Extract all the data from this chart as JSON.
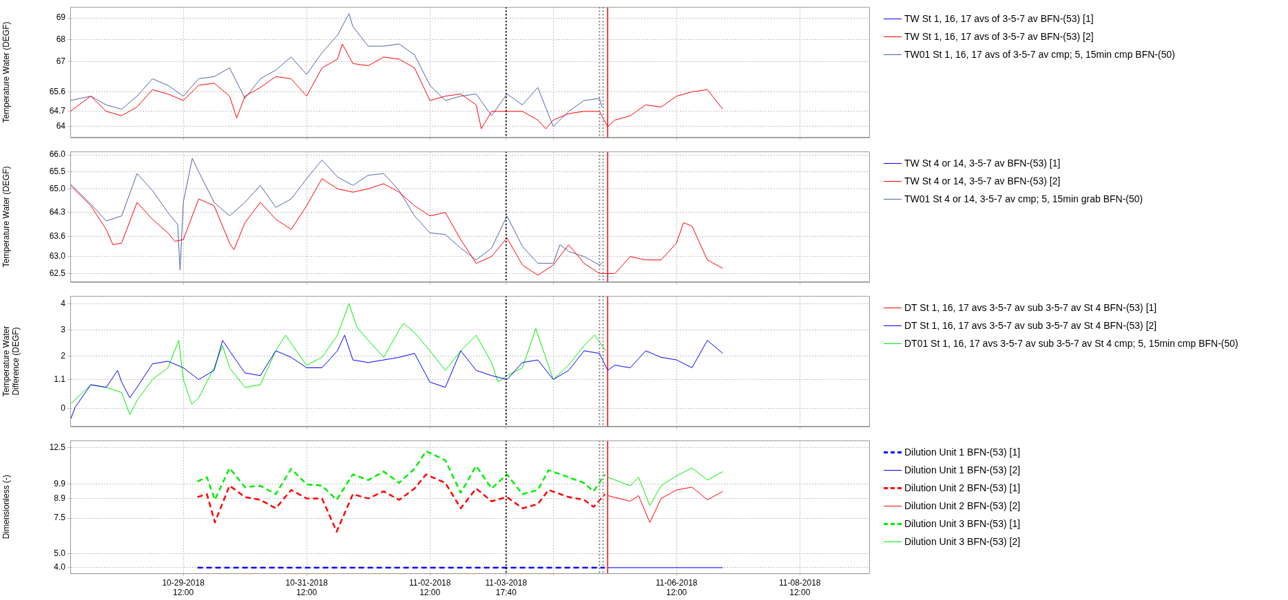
{
  "chart_data": [
    {
      "type": "line",
      "ylabel": "Temperature Water (DEGF)",
      "legend": "right",
      "grid": true,
      "tick_labels": "y",
      "xlim": [
        "2018-10-27T16:00",
        "2018-11-09T15:00"
      ],
      "xticks": [
        {
          "value": "2018-10-29T12:00",
          "label": null
        },
        {
          "value": "2018-10-31T12:00",
          "label": null
        },
        {
          "value": "2018-11-02T12:00",
          "label": null
        },
        {
          "value": "2018-11-03T17:40",
          "label": null
        },
        {
          "value": "2018-11-04T12:00",
          "label": null
        },
        {
          "value": "2018-11-06T12:00",
          "label": null
        },
        {
          "value": "2018-11-08T12:00",
          "label": null
        }
      ],
      "ylim": [
        63.5,
        69.5
      ],
      "yticks": [
        64,
        64.7,
        65.6,
        67,
        68,
        69
      ],
      "ref_lines": [
        {
          "axis": "x",
          "value": "2018-11-03T17:40",
          "color": "#000000",
          "line_style": "dotted"
        },
        {
          "axis": "x",
          "value": "2018-11-05T06:00",
          "color": "#808080",
          "line_style": "dotted"
        },
        {
          "axis": "x",
          "value": "2018-11-05T07:24",
          "color": "#808080",
          "line_style": "dotted"
        },
        {
          "axis": "x",
          "value": "2018-11-05T09:12",
          "color": "#ff0000",
          "line_style": "solid"
        }
      ],
      "series": [
        {
          "name": "TW St 1, 16, 17 avs of 3-5-7 av BFN-(53) [1]",
          "color": "#0000ff"
        },
        {
          "name": "TW St 1, 16, 17 avs of 3-5-7 av BFN-(53) [2]",
          "color": "#ff0000",
          "x": [
            "2018-10-27T16:00",
            "2018-10-28T00:00",
            "2018-10-28T06:00",
            "2018-10-28T12:00",
            "2018-10-28T18:00",
            "2018-10-29T00:00",
            "2018-10-29T06:00",
            "2018-10-29T12:00",
            "2018-10-29T18:00",
            "2018-10-30T00:00",
            "2018-10-30T06:00",
            "2018-10-30T08:48",
            "2018-10-30T12:00",
            "2018-10-30T18:00",
            "2018-10-31T00:00",
            "2018-10-31T06:00",
            "2018-10-31T12:00",
            "2018-10-31T18:00",
            "2018-11-01T00:00",
            "2018-11-01T01:54",
            "2018-11-01T06:00",
            "2018-11-01T12:00",
            "2018-11-01T18:00",
            "2018-11-02T00:00",
            "2018-11-02T06:00",
            "2018-11-02T12:00",
            "2018-11-02T18:00",
            "2018-11-03T00:00",
            "2018-11-03T06:00",
            "2018-11-03T08:00",
            "2018-11-03T12:00",
            "2018-11-03T18:00",
            "2018-11-04T00:00",
            "2018-11-04T06:00",
            "2018-11-04T09:06",
            "2018-11-04T12:00",
            "2018-11-04T18:00",
            "2018-11-05T00:00",
            "2018-11-05T06:00",
            "2018-11-05T09:12",
            "2018-11-05T12:00",
            "2018-11-05T18:00",
            "2018-11-06T00:00",
            "2018-11-06T06:00",
            "2018-11-06T12:00",
            "2018-11-06T18:00",
            "2018-11-07T00:00",
            "2018-11-07T06:00"
          ],
          "values": [
            64.7,
            65.4,
            64.7,
            64.5,
            64.9,
            65.7,
            65.5,
            65.2,
            65.9,
            66.0,
            65.4,
            64.4,
            65.4,
            65.8,
            66.3,
            66.2,
            65.4,
            66.7,
            67.1,
            67.8,
            66.9,
            66.8,
            67.2,
            67.1,
            66.7,
            65.2,
            65.4,
            65.5,
            65.0,
            63.9,
            64.7,
            64.7,
            64.7,
            64.3,
            63.9,
            64.3,
            64.6,
            64.7,
            64.7,
            64.0,
            64.3,
            64.5,
            65.0,
            64.9,
            65.4,
            65.6,
            65.7,
            64.8
          ]
        },
        {
          "name": "TW01 St 1, 16, 17 avs of 3-5-7 av cmp; 5, 15min cmp BFN-(50)",
          "color": "#4f62a8",
          "x": [
            "2018-10-27T16:00",
            "2018-10-28T00:00",
            "2018-10-28T06:00",
            "2018-10-28T12:00",
            "2018-10-28T18:00",
            "2018-10-29T00:00",
            "2018-10-29T06:00",
            "2018-10-29T12:00",
            "2018-10-29T18:00",
            "2018-10-30T00:00",
            "2018-10-30T06:00",
            "2018-10-30T12:00",
            "2018-10-30T18:00",
            "2018-10-31T00:00",
            "2018-10-31T06:00",
            "2018-10-31T12:00",
            "2018-10-31T18:00",
            "2018-11-01T00:00",
            "2018-11-01T04:30",
            "2018-11-01T06:00",
            "2018-11-01T12:00",
            "2018-11-01T18:00",
            "2018-11-02T00:00",
            "2018-11-02T06:00",
            "2018-11-02T12:00",
            "2018-11-02T18:00",
            "2018-11-03T00:00",
            "2018-11-03T06:00",
            "2018-11-03T12:00",
            "2018-11-03T18:00",
            "2018-11-04T00:00",
            "2018-11-04T06:00",
            "2018-11-04T12:00",
            "2018-11-04T18:00",
            "2018-11-05T00:00",
            "2018-11-05T06:00",
            "2018-11-05T07:00"
          ],
          "values": [
            65.2,
            65.4,
            65.0,
            64.8,
            65.4,
            66.2,
            65.9,
            65.4,
            66.2,
            66.3,
            66.7,
            65.3,
            66.2,
            66.6,
            67.2,
            66.4,
            67.4,
            68.2,
            69.2,
            68.6,
            67.7,
            67.7,
            67.8,
            67.3,
            65.9,
            65.2,
            65.4,
            65.5,
            64.5,
            65.5,
            65.0,
            65.8,
            64.0,
            64.7,
            65.2,
            65.3,
            64.9
          ]
        }
      ]
    },
    {
      "type": "line",
      "ylabel": "Temperature Water (DEGF)",
      "legend": "right",
      "grid": true,
      "tick_labels": "y",
      "xlim": [
        "2018-10-27T16:00",
        "2018-11-09T15:00"
      ],
      "xticks": [
        {
          "value": "2018-10-29T12:00",
          "label": null
        },
        {
          "value": "2018-10-31T12:00",
          "label": null
        },
        {
          "value": "2018-11-02T12:00",
          "label": null
        },
        {
          "value": "2018-11-03T17:40",
          "label": null
        },
        {
          "value": "2018-11-04T12:00",
          "label": null
        },
        {
          "value": "2018-11-06T12:00",
          "label": null
        },
        {
          "value": "2018-11-08T12:00",
          "label": null
        }
      ],
      "ylim": [
        62.25,
        66.1
      ],
      "yticks": [
        62.5,
        {
          "value": 63,
          "label": "63.0"
        },
        63.6,
        64.3,
        {
          "value": 65,
          "label": "65.0"
        },
        65.5,
        {
          "value": 66,
          "label": "66.0"
        }
      ],
      "ref_lines": [
        {
          "axis": "x",
          "value": "2018-11-03T17:40",
          "color": "#000000",
          "line_style": "dotted"
        },
        {
          "axis": "x",
          "value": "2018-11-05T06:00",
          "color": "#808080",
          "line_style": "dotted"
        },
        {
          "axis": "x",
          "value": "2018-11-05T07:24",
          "color": "#808080",
          "line_style": "dotted"
        },
        {
          "axis": "x",
          "value": "2018-11-05T09:12",
          "color": "#ff0000",
          "line_style": "solid"
        }
      ],
      "series": [
        {
          "name": "TW St 4 or 14, 3-5-7 av BFN-(53) [1]",
          "color": "#0000ff"
        },
        {
          "name": "TW St 4 or 14, 3-5-7 av BFN-(53) [2]",
          "color": "#ff0000",
          "x": [
            "2018-10-27T16:00",
            "2018-10-28T00:00",
            "2018-10-28T06:00",
            "2018-10-28T08:36",
            "2018-10-28T12:00",
            "2018-10-28T18:00",
            "2018-10-29T00:00",
            "2018-10-29T06:00",
            "2018-10-29T08:42",
            "2018-10-29T12:00",
            "2018-10-29T18:00",
            "2018-10-30T00:00",
            "2018-10-30T06:00",
            "2018-10-30T07:42",
            "2018-10-30T12:00",
            "2018-10-30T18:00",
            "2018-10-31T00:00",
            "2018-10-31T06:00",
            "2018-10-31T12:00",
            "2018-10-31T18:00",
            "2018-11-01T00:00",
            "2018-11-01T06:00",
            "2018-11-01T12:00",
            "2018-11-01T18:00",
            "2018-11-02T00:00",
            "2018-11-02T06:00",
            "2018-11-02T12:00",
            "2018-11-02T18:00",
            "2018-11-03T00:00",
            "2018-11-03T06:00",
            "2018-11-03T12:00",
            "2018-11-03T18:00",
            "2018-11-04T00:00",
            "2018-11-04T06:00",
            "2018-11-04T12:00",
            "2018-11-04T18:00",
            "2018-11-05T00:00",
            "2018-11-05T06:00",
            "2018-11-05T12:00",
            "2018-11-05T18:00",
            "2018-11-06T00:00",
            "2018-11-06T06:00",
            "2018-11-06T12:00",
            "2018-11-06T14:42",
            "2018-11-06T18:00",
            "2018-11-07T00:00",
            "2018-11-07T06:00"
          ],
          "values": [
            65.1,
            64.5,
            63.8,
            63.35,
            63.4,
            64.6,
            64.1,
            63.7,
            63.45,
            63.5,
            64.7,
            64.5,
            63.4,
            63.2,
            64.0,
            64.6,
            64.1,
            63.8,
            64.5,
            65.3,
            65.0,
            64.9,
            65.0,
            65.15,
            64.9,
            64.5,
            64.2,
            64.3,
            63.5,
            62.8,
            63.0,
            63.55,
            62.75,
            62.45,
            62.75,
            63.35,
            62.8,
            62.5,
            62.5,
            63.0,
            62.9,
            62.9,
            63.4,
            64.0,
            63.9,
            62.9,
            62.65
          ]
        },
        {
          "name": "TW01 St 4 or 14, 3-5-7 av cmp; 5, 15min grab BFN-(50)",
          "color": "#4f62a8",
          "x": [
            "2018-10-27T16:00",
            "2018-10-28T00:00",
            "2018-10-28T06:00",
            "2018-10-28T12:00",
            "2018-10-28T18:00",
            "2018-10-29T00:00",
            "2018-10-29T06:00",
            "2018-10-29T09:48",
            "2018-10-29T10:45",
            "2018-10-29T12:00",
            "2018-10-29T15:30",
            "2018-10-29T18:00",
            "2018-10-30T00:00",
            "2018-10-30T06:00",
            "2018-10-30T12:00",
            "2018-10-30T18:00",
            "2018-10-31T00:00",
            "2018-10-31T06:00",
            "2018-10-31T12:00",
            "2018-10-31T18:00",
            "2018-11-01T00:00",
            "2018-11-01T06:00",
            "2018-11-01T12:00",
            "2018-11-01T18:00",
            "2018-11-02T00:00",
            "2018-11-02T06:00",
            "2018-11-02T12:00",
            "2018-11-02T18:00",
            "2018-11-03T00:00",
            "2018-11-03T06:00",
            "2018-11-03T12:00",
            "2018-11-03T18:00",
            "2018-11-04T00:00",
            "2018-11-04T06:00",
            "2018-11-04T12:00",
            "2018-11-04T14:36",
            "2018-11-04T18:00",
            "2018-11-05T00:00",
            "2018-11-05T06:00",
            "2018-11-05T07:00"
          ],
          "values": [
            65.15,
            64.55,
            64.05,
            64.2,
            65.45,
            64.95,
            64.3,
            63.95,
            62.6,
            64.6,
            65.9,
            65.5,
            64.6,
            64.2,
            64.6,
            65.1,
            64.45,
            64.7,
            65.3,
            65.85,
            65.35,
            65.1,
            65.4,
            65.45,
            64.95,
            64.2,
            63.7,
            63.65,
            63.25,
            62.9,
            63.25,
            64.2,
            63.3,
            62.8,
            62.8,
            63.35,
            63.15,
            63.0,
            62.75,
            62.8
          ]
        }
      ]
    },
    {
      "type": "line",
      "ylabel": "Temperature Water Difference (DEGF)",
      "legend": "right",
      "grid": true,
      "tick_labels": "y",
      "xlim": [
        "2018-10-27T16:00",
        "2018-11-09T15:00"
      ],
      "xticks": [
        {
          "value": "2018-10-29T12:00",
          "label": null
        },
        {
          "value": "2018-10-31T12:00",
          "label": null
        },
        {
          "value": "2018-11-02T12:00",
          "label": null
        },
        {
          "value": "2018-11-03T17:40",
          "label": null
        },
        {
          "value": "2018-11-04T12:00",
          "label": null
        },
        {
          "value": "2018-11-06T12:00",
          "label": null
        },
        {
          "value": "2018-11-08T12:00",
          "label": null
        }
      ],
      "ylim": [
        -0.7,
        4.3
      ],
      "yticks": [
        0,
        1.1,
        2,
        3,
        4
      ],
      "ref_lines": [
        {
          "axis": "x",
          "value": "2018-11-03T17:40",
          "color": "#000000",
          "line_style": "dotted"
        },
        {
          "axis": "x",
          "value": "2018-11-05T06:00",
          "color": "#808080",
          "line_style": "dotted"
        },
        {
          "axis": "x",
          "value": "2018-11-05T07:24",
          "color": "#808080",
          "line_style": "dotted"
        },
        {
          "axis": "x",
          "value": "2018-11-05T09:12",
          "color": "#ff0000",
          "line_style": "solid"
        }
      ],
      "series": [
        {
          "name": "DT St 1, 16, 17 avs 3-5-7 av sub 3-5-7 av St 4 BFN-(53) [1]",
          "color": "#ff0000"
        },
        {
          "name": "DT St 1, 16, 17 avs 3-5-7 av sub 3-5-7 av St 4 BFN-(53) [2]",
          "color": "#0000ff",
          "x": [
            "2018-10-27T16:00",
            "2018-10-27T18:00",
            "2018-10-28T00:00",
            "2018-10-28T06:00",
            "2018-10-28T10:24",
            "2018-10-28T12:00",
            "2018-10-28T15:12",
            "2018-10-28T18:00",
            "2018-10-29T00:00",
            "2018-10-29T06:00",
            "2018-10-29T12:00",
            "2018-10-29T18:00",
            "2018-10-30T00:00",
            "2018-10-30T03:18",
            "2018-10-30T06:00",
            "2018-10-30T12:00",
            "2018-10-30T18:00",
            "2018-10-31T00:00",
            "2018-10-31T06:00",
            "2018-10-31T12:00",
            "2018-10-31T18:00",
            "2018-11-01T00:00",
            "2018-11-01T02:48",
            "2018-11-01T06:00",
            "2018-11-01T12:00",
            "2018-11-01T18:00",
            "2018-11-02T00:00",
            "2018-11-02T06:00",
            "2018-11-02T12:00",
            "2018-11-02T18:00",
            "2018-11-03T00:00",
            "2018-11-03T06:00",
            "2018-11-03T12:00",
            "2018-11-03T18:00",
            "2018-11-04T00:00",
            "2018-11-04T06:00",
            "2018-11-04T12:00",
            "2018-11-04T18:00",
            "2018-11-05T00:00",
            "2018-11-05T06:00",
            "2018-11-05T09:12",
            "2018-11-05T12:00",
            "2018-11-05T18:00",
            "2018-11-06T00:00",
            "2018-11-06T06:00",
            "2018-11-06T12:00",
            "2018-11-06T18:00",
            "2018-11-07T00:00",
            "2018-11-07T06:00"
          ],
          "values": [
            -0.45,
            0.05,
            0.9,
            0.8,
            1.45,
            1.0,
            0.4,
            0.8,
            1.7,
            1.8,
            1.55,
            1.1,
            1.45,
            2.6,
            2.2,
            1.35,
            1.25,
            2.2,
            1.95,
            1.55,
            1.55,
            2.2,
            2.8,
            1.85,
            1.75,
            1.85,
            1.95,
            2.1,
            1.0,
            0.8,
            2.2,
            1.45,
            1.25,
            1.1,
            1.75,
            1.85,
            1.1,
            1.45,
            2.2,
            2.1,
            1.45,
            1.65,
            1.55,
            2.2,
            1.95,
            1.85,
            1.55,
            2.6,
            2.1
          ]
        },
        {
          "name": "DT01 St 1, 16, 17 avs 3-5-7 av sub 3-5-7 av St 4 cmp; 5, 15min cmp BFN-(50)",
          "color": "#00ee00",
          "x": [
            "2018-10-27T16:00",
            "2018-10-28T00:00",
            "2018-10-28T06:00",
            "2018-10-28T12:00",
            "2018-10-28T15:12",
            "2018-10-28T18:00",
            "2018-10-29T00:00",
            "2018-10-29T06:00",
            "2018-10-29T10:15",
            "2018-10-29T12:00",
            "2018-10-29T15:18",
            "2018-10-29T18:00",
            "2018-10-30T00:00",
            "2018-10-30T03:18",
            "2018-10-30T06:00",
            "2018-10-30T12:00",
            "2018-10-30T18:00",
            "2018-10-31T00:00",
            "2018-10-31T03:48",
            "2018-10-31T08:00",
            "2018-10-31T12:00",
            "2018-10-31T18:00",
            "2018-11-01T00:00",
            "2018-11-01T04:30",
            "2018-11-01T07:36",
            "2018-11-01T12:00",
            "2018-11-01T18:00",
            "2018-11-02T00:00",
            "2018-11-02T01:48",
            "2018-11-02T06:00",
            "2018-11-02T12:00",
            "2018-11-02T18:00",
            "2018-11-03T00:00",
            "2018-11-03T06:00",
            "2018-11-03T12:00",
            "2018-11-03T14:30",
            "2018-11-03T18:00",
            "2018-11-04T00:00",
            "2018-11-04T05:12",
            "2018-11-04T12:00",
            "2018-11-04T18:00",
            "2018-11-05T00:00",
            "2018-11-05T04:06",
            "2018-11-05T08:30"
          ],
          "values": [
            0.15,
            0.9,
            0.8,
            0.6,
            -0.25,
            0.3,
            1.1,
            1.55,
            2.6,
            1.1,
            0.15,
            0.4,
            1.55,
            2.4,
            1.55,
            0.8,
            0.9,
            2.2,
            2.8,
            2.2,
            1.65,
            1.95,
            2.8,
            4.0,
            3.1,
            2.6,
            1.95,
            3.0,
            3.25,
            2.9,
            2.2,
            1.45,
            2.2,
            2.8,
            1.75,
            1.0,
            1.25,
            1.55,
            3.05,
            1.1,
            1.65,
            2.4,
            2.8,
            2.2
          ]
        }
      ]
    },
    {
      "type": "line",
      "ylabel": "Dimensionless (-)",
      "legend": "right",
      "grid": true,
      "xlim": [
        "2018-10-27T16:00",
        "2018-11-09T15:00"
      ],
      "xticks": [
        {
          "value": "2018-10-29T12:00",
          "label": "10-29-2018\n12:00"
        },
        {
          "value": "2018-10-31T12:00",
          "label": "10-31-2018\n12:00"
        },
        {
          "value": "2018-11-02T12:00",
          "label": "11-02-2018\n12:00"
        },
        {
          "value": "2018-11-03T17:40",
          "label": "11-03-2018\n17:40"
        },
        {
          "value": "2018-11-04T12:00",
          "label": null
        },
        {
          "value": "2018-11-06T12:00",
          "label": "11-06-2018\n12:00"
        },
        {
          "value": "2018-11-08T12:00",
          "label": "11-08-2018\n12:00"
        }
      ],
      "ylim": [
        3.6,
        13
      ],
      "yticks": [
        {
          "value": 4,
          "label": "4.0"
        },
        {
          "value": 5,
          "label": "5.0"
        },
        7.5,
        8.9,
        9.9,
        12.5
      ],
      "ref_lines": [
        {
          "axis": "x",
          "value": "2018-11-03T17:40",
          "color": "#000000",
          "line_style": "dotted"
        },
        {
          "axis": "x",
          "value": "2018-11-05T06:00",
          "color": "#808080",
          "line_style": "dotted"
        },
        {
          "axis": "x",
          "value": "2018-11-05T07:24",
          "color": "#808080",
          "line_style": "dotted"
        },
        {
          "axis": "x",
          "value": "2018-11-05T09:12",
          "color": "#ff0000",
          "line_style": "solid"
        }
      ],
      "series": [
        {
          "name": "Dilution Unit 1 BFN-(53) [1]",
          "color": "#0000ff",
          "line_style": "dashed",
          "x": [
            "2018-10-29T17:30",
            "2018-11-05T08:06"
          ],
          "values": [
            4.0,
            4.0
          ]
        },
        {
          "name": "Dilution Unit 1 BFN-(53) [2]",
          "color": "#0000ff",
          "x": [
            "2018-11-05T09:12",
            "2018-11-07T06:00"
          ],
          "values": [
            4.0,
            4.0
          ]
        },
        {
          "name": "Dilution Unit 2 BFN-(53) [1]",
          "color": "#ff0000",
          "line_style": "dashed",
          "x": [
            "2018-10-29T17:30",
            "2018-10-29T21:12",
            "2018-10-30T00:18",
            "2018-10-30T06:00",
            "2018-10-30T12:00",
            "2018-10-30T18:00",
            "2018-10-31T00:00",
            "2018-10-31T06:00",
            "2018-10-31T12:00",
            "2018-10-31T18:00",
            "2018-10-31T23:42",
            "2018-11-01T06:00",
            "2018-11-01T12:00",
            "2018-11-01T18:00",
            "2018-11-02T00:00",
            "2018-11-02T06:00",
            "2018-11-02T10:30",
            "2018-11-02T18:00",
            "2018-11-03T00:00",
            "2018-11-03T06:00",
            "2018-11-03T12:00",
            "2018-11-03T18:00",
            "2018-11-04T00:00",
            "2018-11-04T06:00",
            "2018-11-04T10:12",
            "2018-11-04T18:00",
            "2018-11-05T00:00",
            "2018-11-05T03:42",
            "2018-11-05T08:06"
          ],
          "values": [
            9.0,
            9.2,
            7.2,
            9.8,
            9.0,
            8.8,
            8.2,
            9.5,
            8.9,
            8.9,
            6.55,
            9.2,
            8.9,
            9.4,
            8.8,
            9.6,
            10.6,
            10.0,
            8.2,
            9.6,
            8.7,
            9.0,
            8.2,
            8.5,
            9.5,
            9.0,
            8.8,
            8.3,
            9.2
          ]
        },
        {
          "name": "Dilution Unit 2 BFN-(53) [2]",
          "color": "#ff0000",
          "x": [
            "2018-11-05T09:12",
            "2018-11-05T18:00",
            "2018-11-05T21:12",
            "2018-11-06T01:36",
            "2018-11-06T06:00",
            "2018-11-06T12:00",
            "2018-11-06T18:00",
            "2018-11-07T00:00",
            "2018-11-07T06:00"
          ],
          "values": [
            9.1,
            8.7,
            9.1,
            7.2,
            8.9,
            9.5,
            9.7,
            8.8,
            9.4
          ]
        },
        {
          "name": "Dilution Unit 3 BFN-(53) [1]",
          "color": "#00ee00",
          "line_style": "dashed",
          "x": [
            "2018-10-29T17:30",
            "2018-10-29T21:12",
            "2018-10-30T00:18",
            "2018-10-30T06:00",
            "2018-10-30T12:00",
            "2018-10-30T18:00",
            "2018-10-31T00:00",
            "2018-10-31T06:00",
            "2018-10-31T12:00",
            "2018-10-31T18:00",
            "2018-10-31T23:42",
            "2018-11-01T06:00",
            "2018-11-01T12:00",
            "2018-11-01T18:00",
            "2018-11-02T00:00",
            "2018-11-02T06:00",
            "2018-11-02T10:30",
            "2018-11-02T18:00",
            "2018-11-03T00:00",
            "2018-11-03T06:00",
            "2018-11-03T12:00",
            "2018-11-03T18:00",
            "2018-11-04T00:00",
            "2018-11-04T06:00",
            "2018-11-04T10:12",
            "2018-11-04T18:00",
            "2018-11-05T00:00",
            "2018-11-05T03:42",
            "2018-11-05T08:06"
          ],
          "values": [
            10.1,
            10.4,
            8.8,
            11.05,
            9.7,
            9.8,
            9.2,
            11.0,
            9.9,
            9.8,
            8.8,
            10.6,
            10.2,
            10.8,
            10.0,
            11.0,
            12.25,
            11.6,
            9.3,
            11.2,
            9.6,
            10.6,
            9.2,
            9.5,
            10.9,
            10.4,
            10.0,
            9.4,
            10.6
          ]
        },
        {
          "name": "Dilution Unit 3 BFN-(53) [2]",
          "color": "#00ee00",
          "x": [
            "2018-11-05T09:12",
            "2018-11-05T18:00",
            "2018-11-05T21:12",
            "2018-11-06T01:36",
            "2018-11-06T06:00",
            "2018-11-06T12:00",
            "2018-11-06T18:00",
            "2018-11-07T00:00",
            "2018-11-07T06:00"
          ],
          "values": [
            10.4,
            9.8,
            10.4,
            8.4,
            9.8,
            10.5,
            11.05,
            10.2,
            10.8
          ]
        }
      ]
    }
  ]
}
